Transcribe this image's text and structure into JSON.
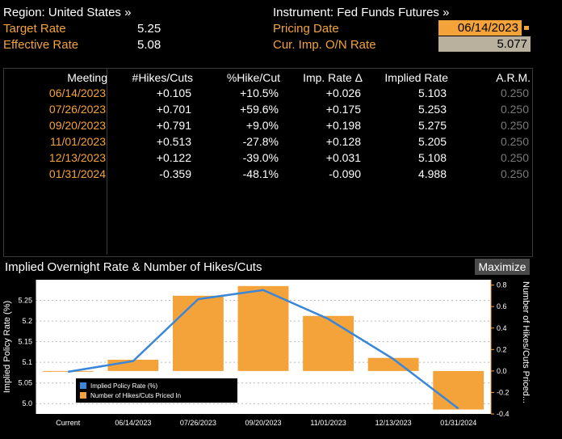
{
  "header": {
    "region_label": "Region: United States »",
    "target_rate_label": "Target Rate",
    "target_rate_value": "5.25",
    "effective_rate_label": "Effective Rate",
    "effective_rate_value": "5.08",
    "instrument_label": "Instrument: Fed Funds Futures »",
    "pricing_date_label": "Pricing Date",
    "pricing_date_value": "06/14/2023",
    "cur_imp_label": "Cur. Imp. O/N Rate",
    "cur_imp_value": "5.077"
  },
  "table": {
    "columns": [
      "Meeting",
      "#Hikes/Cuts",
      "%Hike/Cut",
      "Imp. Rate Δ",
      "Implied Rate",
      "A.R.M."
    ],
    "rows": [
      [
        "06/14/2023",
        "+0.105",
        "+10.5%",
        "+0.026",
        "5.103",
        "0.250"
      ],
      [
        "07/26/2023",
        "+0.701",
        "+59.6%",
        "+0.175",
        "5.253",
        "0.250"
      ],
      [
        "09/20/2023",
        "+0.791",
        "+9.0%",
        "+0.198",
        "5.275",
        "0.250"
      ],
      [
        "11/01/2023",
        "+0.513",
        "-27.8%",
        "+0.128",
        "5.205",
        "0.250"
      ],
      [
        "12/13/2023",
        "+0.122",
        "-39.0%",
        "+0.031",
        "5.108",
        "0.250"
      ],
      [
        "01/31/2024",
        "-0.359",
        "-48.1%",
        "-0.090",
        "4.988",
        "0.250"
      ]
    ]
  },
  "chart_panel": {
    "title": "Implied Overnight Rate & Number of Hikes/Cuts",
    "maximize_label": "Maximize"
  },
  "colors": {
    "accent_orange": "#f4a33a",
    "line_blue": "#3a86d8"
  },
  "chart_data": {
    "type": "bar",
    "categories": [
      "Current",
      "06/14/2023",
      "07/26/2023",
      "09/20/2023",
      "11/01/2023",
      "12/13/2023",
      "01/31/2024"
    ],
    "series": [
      {
        "name": "Implied Policy Rate (%)",
        "type": "line",
        "axis": "left",
        "values": [
          5.077,
          5.103,
          5.253,
          5.275,
          5.205,
          5.108,
          4.988
        ]
      },
      {
        "name": "Number of Hikes/Cuts Priced In",
        "type": "bar",
        "axis": "right",
        "values": [
          0.0,
          0.105,
          0.701,
          0.791,
          0.513,
          0.122,
          -0.359
        ]
      }
    ],
    "ylabel_left": "Implied Policy Rate (%)",
    "ylabel_right": "Number of Hikes/Cuts Priced...",
    "ylim_left": [
      4.975,
      5.3
    ],
    "yticks_left": [
      5.0,
      5.05,
      5.1,
      5.15,
      5.2,
      5.25
    ],
    "ytick_labels_left": [
      "5.0",
      "5.05",
      "5.1",
      "5.15",
      "5.2",
      "5.25"
    ],
    "ylim_right": [
      -0.4,
      0.85
    ],
    "yticks_right": [
      -0.4,
      -0.2,
      0.0,
      0.2,
      0.4,
      0.6,
      0.8
    ],
    "ytick_labels_right": [
      "-0.4",
      "-0.2",
      "0.0",
      "0.2",
      "0.4",
      "0.6",
      "0.8"
    ],
    "legend": "bottom-left",
    "grid": true
  }
}
